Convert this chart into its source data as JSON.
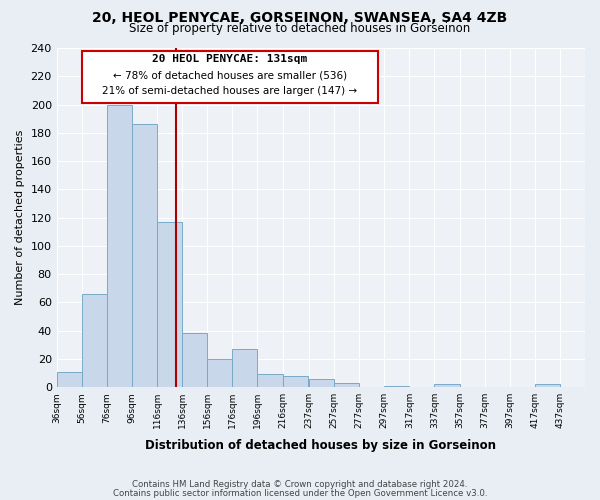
{
  "title": "20, HEOL PENYCAE, GORSEINON, SWANSEA, SA4 4ZB",
  "subtitle": "Size of property relative to detached houses in Gorseinon",
  "xlabel": "Distribution of detached houses by size in Gorseinon",
  "ylabel": "Number of detached properties",
  "bin_labels": [
    "36sqm",
    "56sqm",
    "76sqm",
    "96sqm",
    "116sqm",
    "136sqm",
    "156sqm",
    "176sqm",
    "196sqm",
    "216sqm",
    "237sqm",
    "257sqm",
    "277sqm",
    "297sqm",
    "317sqm",
    "337sqm",
    "357sqm",
    "377sqm",
    "397sqm",
    "417sqm",
    "437sqm"
  ],
  "bin_edges": [
    36,
    56,
    76,
    96,
    116,
    136,
    156,
    176,
    196,
    216,
    237,
    257,
    277,
    297,
    317,
    337,
    357,
    377,
    397,
    417,
    437
  ],
  "bar_heights": [
    11,
    66,
    200,
    186,
    117,
    38,
    20,
    27,
    9,
    8,
    6,
    3,
    0,
    1,
    0,
    2,
    0,
    0,
    0,
    2,
    0
  ],
  "bar_color": "#c8d8ea",
  "bar_edgecolor": "#7aaac8",
  "property_line_x": 131,
  "property_line_color": "#aa0000",
  "annotation_title": "20 HEOL PENYCAE: 131sqm",
  "annotation_line1": "← 78% of detached houses are smaller (536)",
  "annotation_line2": "21% of semi-detached houses are larger (147) →",
  "annotation_box_edgecolor": "#cc0000",
  "ylim": [
    0,
    240
  ],
  "yticks": [
    0,
    20,
    40,
    60,
    80,
    100,
    120,
    140,
    160,
    180,
    200,
    220,
    240
  ],
  "footnote1": "Contains HM Land Registry data © Crown copyright and database right 2024.",
  "footnote2": "Contains public sector information licensed under the Open Government Licence v3.0.",
  "background_color": "#e8eef4",
  "plot_background_color": "#eef2f7",
  "grid_color": "#ffffff"
}
